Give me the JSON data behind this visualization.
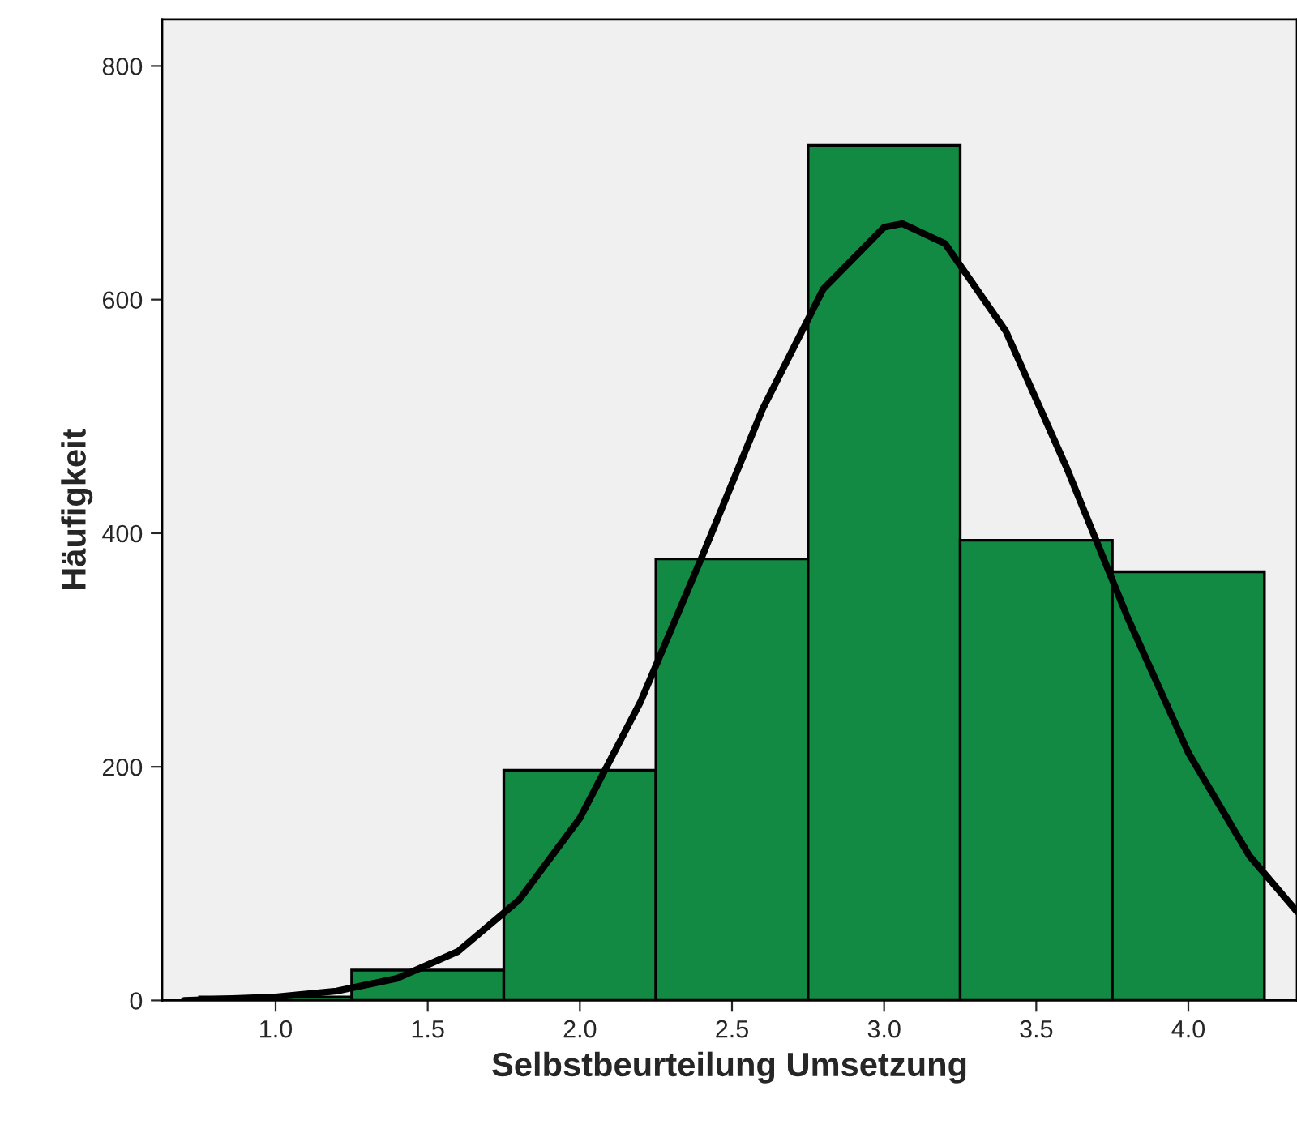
{
  "chart_data": {
    "type": "histogram",
    "xlabel": "Selbstbeurteilung Umsetzung",
    "ylabel": "Häufigkeit",
    "bins": [
      0.75,
      1.25,
      1.75,
      2.25,
      2.75,
      3.25,
      3.75,
      4.25
    ],
    "values": [
      3,
      26,
      197,
      378,
      732,
      394,
      367
    ],
    "color": "#138a43",
    "series": [
      {
        "type": "line",
        "color": "#000000",
        "x": [
          0.7,
          1.0,
          1.2,
          1.4,
          1.6,
          1.8,
          2.0,
          2.2,
          2.4,
          2.6,
          2.8,
          3.0,
          3.06,
          3.2,
          3.4,
          3.6,
          3.8,
          4.0,
          4.2,
          4.357
        ],
        "values": [
          0,
          3,
          8,
          19,
          42,
          86,
          156,
          256,
          379,
          506,
          609,
          662,
          665,
          648,
          573,
          456,
          328,
          212,
          124,
          76
        ]
      }
    ],
    "xlim": [
      0.627,
      4.357
    ],
    "ylim": [
      0,
      840
    ],
    "xticks": [
      {
        "value": 1.0,
        "label": "1.0"
      },
      {
        "value": 1.5,
        "label": "1.5"
      },
      {
        "value": 2.0,
        "label": "2.0"
      },
      {
        "value": 2.5,
        "label": "2.5"
      },
      {
        "value": 3.0,
        "label": "3.0"
      },
      {
        "value": 3.5,
        "label": "3.5"
      },
      {
        "value": 4.0,
        "label": "4.0"
      }
    ],
    "yticks": [
      0,
      200,
      400,
      600,
      800
    ],
    "grid": false
  }
}
